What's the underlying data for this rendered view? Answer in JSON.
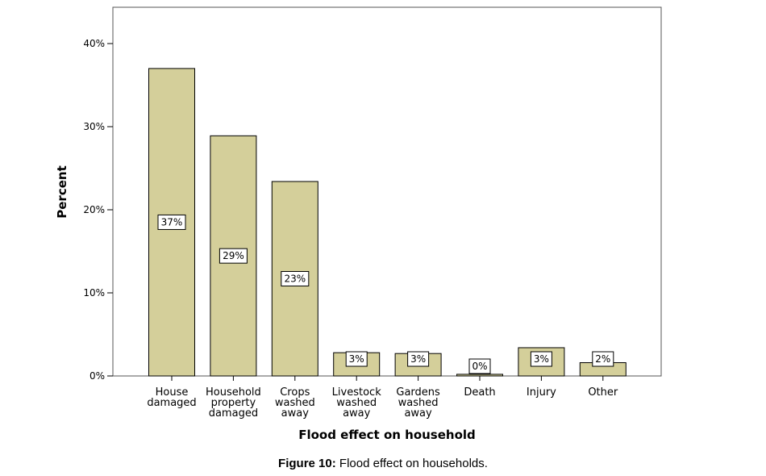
{
  "chart_data": {
    "type": "bar",
    "xlabel": "Flood effect on household",
    "ylabel": "Percent",
    "ylim": [
      0,
      44
    ],
    "yticks": [
      0,
      10,
      20,
      30,
      40
    ],
    "ytick_labels": [
      "0%",
      "10%",
      "20%",
      "30%",
      "40%"
    ],
    "grid": false,
    "bar_color": "#d4cf9a",
    "categories": [
      [
        "House",
        "damaged"
      ],
      [
        "Household",
        "property",
        "damaged"
      ],
      [
        "Crops",
        "washed",
        "away"
      ],
      [
        "Livestock",
        "washed",
        "away"
      ],
      [
        "Gardens",
        "washed",
        "away"
      ],
      [
        "Death"
      ],
      [
        "Injury"
      ],
      [
        "Other"
      ]
    ],
    "values": [
      37.0,
      28.9,
      23.4,
      2.8,
      2.7,
      0.2,
      3.4,
      1.6
    ],
    "data_labels": [
      "37%",
      "29%",
      "23%",
      "3%",
      "3%",
      "0%",
      "3%",
      "2%"
    ]
  },
  "caption": {
    "prefix": "Figure 10:",
    "text": "Flood effect on households."
  }
}
